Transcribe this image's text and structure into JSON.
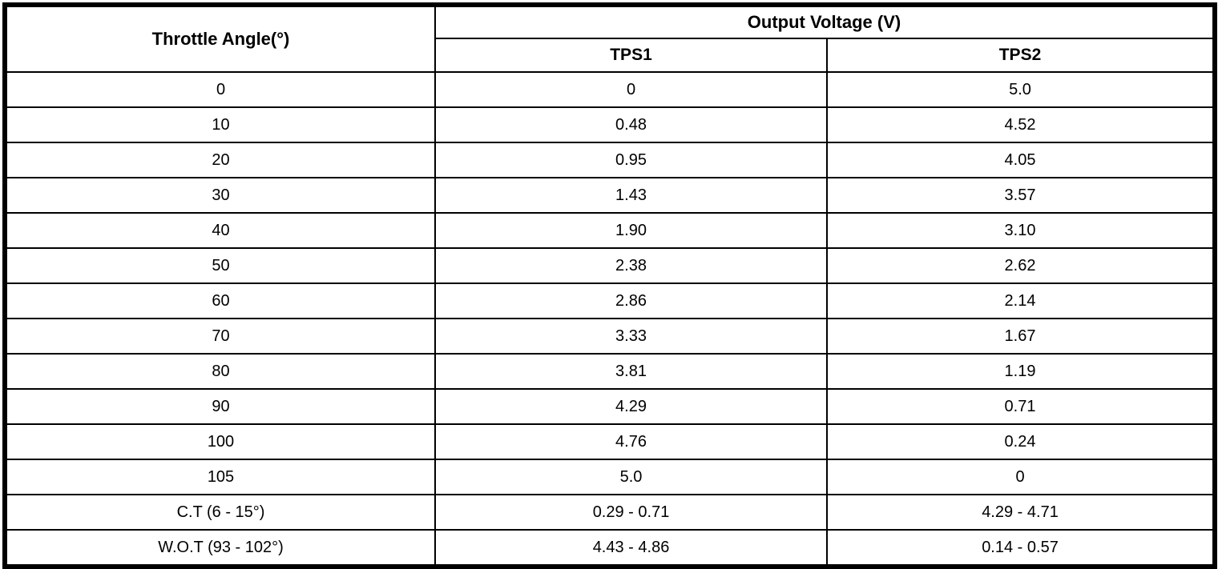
{
  "table": {
    "angle_header": "Throttle Angle(°)",
    "voltage_group_header": "Output Voltage (V)",
    "tps1_header": "TPS1",
    "tps2_header": "TPS2",
    "rows": [
      {
        "angle": "0",
        "tps1": "0",
        "tps2": "5.0"
      },
      {
        "angle": "10",
        "tps1": "0.48",
        "tps2": "4.52"
      },
      {
        "angle": "20",
        "tps1": "0.95",
        "tps2": "4.05"
      },
      {
        "angle": "30",
        "tps1": "1.43",
        "tps2": "3.57"
      },
      {
        "angle": "40",
        "tps1": "1.90",
        "tps2": "3.10"
      },
      {
        "angle": "50",
        "tps1": "2.38",
        "tps2": "2.62"
      },
      {
        "angle": "60",
        "tps1": "2.86",
        "tps2": "2.14"
      },
      {
        "angle": "70",
        "tps1": "3.33",
        "tps2": "1.67"
      },
      {
        "angle": "80",
        "tps1": "3.81",
        "tps2": "1.19"
      },
      {
        "angle": "90",
        "tps1": "4.29",
        "tps2": "0.71"
      },
      {
        "angle": "100",
        "tps1": "4.76",
        "tps2": "0.24"
      },
      {
        "angle": "105",
        "tps1": "5.0",
        "tps2": "0"
      },
      {
        "angle": "C.T (6 - 15°)",
        "tps1": "0.29 - 0.71",
        "tps2": "4.29 - 4.71"
      },
      {
        "angle": "W.O.T (93 - 102°)",
        "tps1": "4.43 - 4.86",
        "tps2": "0.14 - 0.57"
      }
    ],
    "colors": {
      "border": "#000000",
      "background": "#ffffff",
      "text": "#000000"
    }
  }
}
